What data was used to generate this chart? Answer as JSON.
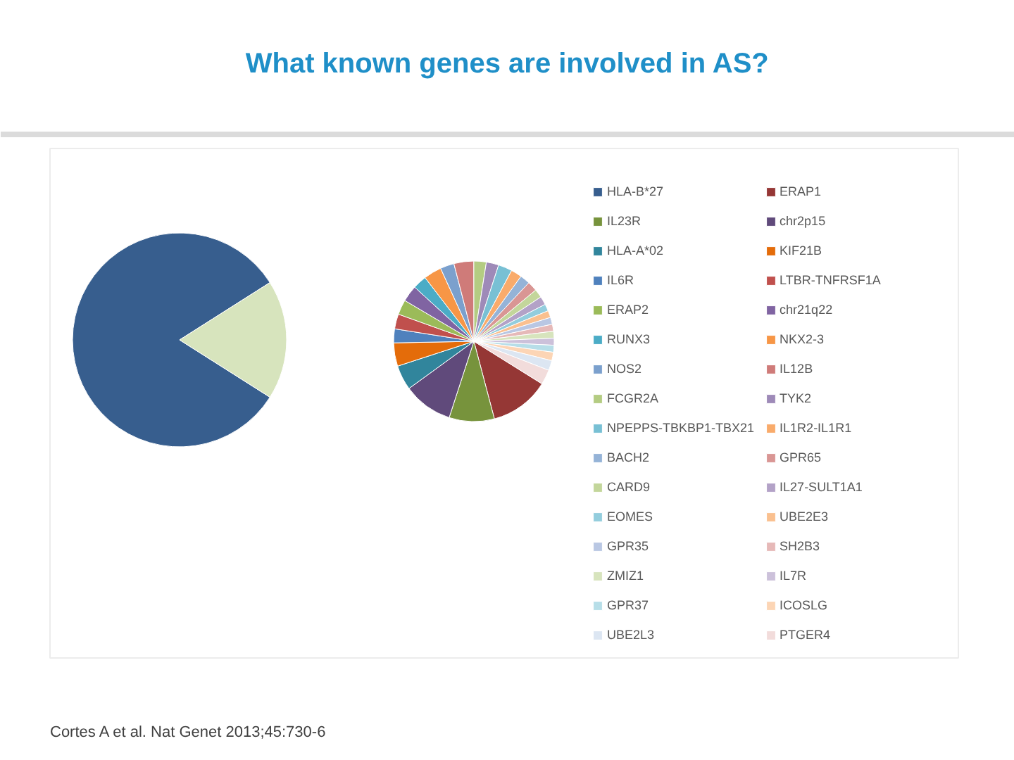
{
  "chart_data": [
    {
      "type": "pie",
      "categories": [
        "HLA-B*27",
        null
      ],
      "values": [
        82,
        18
      ],
      "colors": [
        "#375E8E",
        "#D7E4BD"
      ],
      "legend": "right",
      "annotations": [
        "Cortes A et al. Nat Genet 2013;45:730-6"
      ]
    },
    {
      "type": "pie",
      "title": "What known genes are involved in AS?",
      "categories": [
        "ERAP1",
        "IL23R",
        "chr2p15",
        "HLA-A*02",
        "KIF21B",
        "IL6R",
        "LTBR-TNFRSF1A",
        "ERAP2",
        "chr21q22",
        "RUNX3",
        "NKX2-3",
        "NOS2",
        "IL12B",
        "FCGR2A",
        "TYK2",
        "NPEPPS-TBKBP1-TBX21",
        "IL1R2-IL1R1",
        "BACH2",
        "GPR65",
        "CARD9",
        "IL27-SULT1A1",
        "EOMES",
        "UBE2E3",
        "GPR35",
        "SH2B3",
        "ZMIZ1",
        "IL7R",
        "GPR37",
        "ICOSLG",
        "UBE2L3",
        "PTGER4"
      ],
      "values": [
        12,
        9.1,
        10,
        5,
        4.7,
        2.8,
        3,
        3,
        3.3,
        2.8,
        3.6,
        2.8,
        4,
        2.5,
        2.5,
        2.8,
        2.2,
        2,
        2,
        1.7,
        1.7,
        1.4,
        1.4,
        1.4,
        1.4,
        1.4,
        1.4,
        1.4,
        1.7,
        2,
        3
      ],
      "colors": [
        "#953735",
        "#77933C",
        "#604A7B",
        "#31859C",
        "#E46C0A",
        "#4F81BD",
        "#C0504D",
        "#9BBB59",
        "#8064A2",
        "#4BACC6",
        "#F79646",
        "#7BA0CD",
        "#CF7B79",
        "#B4CC82",
        "#9E8AB8",
        "#78C0D4",
        "#F9AB6B",
        "#95B3D7",
        "#D99694",
        "#C3D69B",
        "#B3A2C7",
        "#93CDDD",
        "#FAC08F",
        "#B9C7E3",
        "#E6B9B8",
        "#D7E4BD",
        "#CCC1DA",
        "#B7DEE8",
        "#FCD5B5",
        "#DCE6F2",
        "#F2DCDB"
      ],
      "legend": "right"
    }
  ]
}
